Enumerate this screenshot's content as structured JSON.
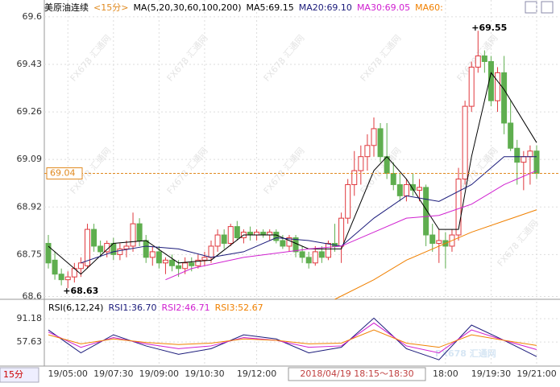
{
  "chart_data": {
    "type": "candlestick",
    "title": "美原油连续",
    "period": "<15分>",
    "indicator": "MA(5,20,30,60,100,200)",
    "ylim": [
      68.59,
      69.66
    ],
    "yticks": [
      69.6,
      69.43,
      69.26,
      69.09,
      68.92,
      68.75,
      68.6
    ],
    "up_color": "#e0393e",
    "down_color": "#5fae4f",
    "categories": [
      null,
      null,
      null,
      "19/05:00",
      null,
      null,
      null,
      null,
      null,
      null,
      "19/07:30",
      null,
      null,
      null,
      null,
      null,
      null,
      "19/09:00",
      null,
      null,
      null,
      null,
      null,
      null,
      "19/10:30",
      null,
      null,
      null,
      null,
      null,
      null,
      null,
      "19/12:00",
      null,
      null,
      null,
      null,
      null,
      null,
      null,
      null,
      null,
      null,
      null,
      null,
      null,
      null,
      null,
      null,
      null,
      null,
      null,
      null,
      null,
      null,
      null,
      null,
      null,
      null,
      null,
      null,
      "18:00",
      null,
      null,
      null,
      null,
      null,
      null,
      "19/19:30",
      null,
      null,
      null,
      null,
      null,
      null,
      "19/21:00"
    ],
    "ohlc": [
      [
        68.79,
        68.82,
        68.7,
        68.72
      ],
      [
        68.73,
        68.76,
        68.66,
        68.68
      ],
      [
        68.68,
        68.7,
        68.64,
        68.66
      ],
      [
        68.66,
        68.69,
        68.63,
        68.67
      ],
      [
        68.67,
        68.72,
        68.65,
        68.7
      ],
      [
        68.7,
        68.74,
        68.67,
        68.72
      ],
      [
        68.71,
        68.86,
        68.7,
        68.84
      ],
      [
        68.84,
        68.86,
        68.76,
        68.78
      ],
      [
        68.78,
        68.8,
        68.74,
        68.76
      ],
      [
        68.76,
        68.8,
        68.74,
        68.79
      ],
      [
        68.79,
        68.81,
        68.73,
        68.75
      ],
      [
        68.75,
        68.79,
        68.73,
        68.77
      ],
      [
        68.77,
        68.8,
        68.74,
        68.78
      ],
      [
        68.78,
        68.9,
        68.76,
        68.86
      ],
      [
        68.86,
        68.88,
        68.78,
        68.8
      ],
      [
        68.8,
        68.82,
        68.72,
        68.74
      ],
      [
        68.74,
        68.78,
        68.71,
        68.76
      ],
      [
        68.76,
        68.78,
        68.7,
        68.72
      ],
      [
        68.72,
        68.74,
        68.68,
        68.73
      ],
      [
        68.73,
        68.75,
        68.69,
        68.71
      ],
      [
        68.71,
        68.73,
        68.67,
        68.7
      ],
      [
        68.7,
        68.74,
        68.68,
        68.72
      ],
      [
        68.72,
        68.74,
        68.69,
        68.71
      ],
      [
        68.71,
        68.75,
        68.7,
        68.73
      ],
      [
        68.73,
        68.76,
        68.71,
        68.74
      ],
      [
        68.74,
        68.8,
        68.72,
        68.78
      ],
      [
        68.78,
        68.84,
        68.76,
        68.82
      ],
      [
        68.82,
        68.84,
        68.77,
        68.79
      ],
      [
        68.79,
        68.86,
        68.78,
        68.85
      ],
      [
        68.85,
        68.87,
        68.8,
        68.81
      ],
      [
        68.81,
        68.84,
        68.79,
        68.83
      ],
      [
        68.83,
        68.85,
        68.8,
        68.82
      ],
      [
        68.82,
        68.84,
        68.8,
        68.83
      ],
      [
        68.83,
        68.84,
        68.81,
        68.82
      ],
      [
        68.82,
        68.84,
        68.8,
        68.83
      ],
      [
        68.83,
        68.84,
        68.79,
        68.8
      ],
      [
        68.8,
        68.82,
        68.77,
        68.78
      ],
      [
        68.78,
        68.82,
        68.76,
        68.81
      ],
      [
        68.81,
        68.82,
        68.74,
        68.76
      ],
      [
        68.76,
        68.78,
        68.72,
        68.74
      ],
      [
        68.74,
        68.76,
        68.7,
        68.72
      ],
      [
        68.72,
        68.78,
        68.71,
        68.76
      ],
      [
        68.76,
        68.78,
        68.72,
        68.74
      ],
      [
        68.74,
        68.8,
        68.73,
        68.79
      ],
      [
        68.79,
        68.86,
        68.76,
        68.78
      ],
      [
        68.78,
        68.9,
        68.72,
        68.88
      ],
      [
        68.88,
        69.02,
        68.86,
        69.0
      ],
      [
        69.0,
        69.12,
        68.96,
        69.05
      ],
      [
        69.05,
        69.14,
        69.0,
        69.1
      ],
      [
        69.1,
        69.18,
        69.05,
        69.14
      ],
      [
        69.14,
        69.24,
        69.1,
        69.2
      ],
      [
        69.2,
        69.22,
        69.08,
        69.1
      ],
      [
        69.1,
        69.22,
        69.02,
        69.04
      ],
      [
        69.04,
        69.08,
        68.98,
        69.0
      ],
      [
        69.0,
        69.04,
        68.94,
        68.96
      ],
      [
        68.96,
        69.02,
        68.94,
        69.0
      ],
      [
        69.0,
        69.04,
        68.96,
        68.98
      ],
      [
        68.98,
        69.02,
        68.94,
        68.99
      ],
      [
        68.99,
        69.0,
        68.78,
        68.82
      ],
      [
        68.82,
        68.86,
        68.76,
        68.79
      ],
      [
        68.79,
        68.84,
        68.72,
        68.8
      ],
      [
        68.8,
        68.83,
        68.7,
        68.78
      ],
      [
        68.78,
        68.84,
        68.76,
        68.82
      ],
      [
        68.82,
        69.06,
        68.8,
        69.02
      ],
      [
        69.02,
        69.3,
        69.0,
        69.28
      ],
      [
        69.28,
        69.44,
        69.26,
        69.42
      ],
      [
        69.42,
        69.55,
        69.4,
        69.46
      ],
      [
        69.46,
        69.48,
        69.4,
        69.44
      ],
      [
        69.44,
        69.46,
        69.28,
        69.3
      ],
      [
        69.3,
        69.42,
        69.26,
        69.4
      ],
      [
        69.4,
        69.46,
        69.18,
        69.22
      ],
      [
        69.22,
        69.3,
        69.12,
        69.13
      ],
      [
        69.13,
        69.16,
        69.0,
        69.08
      ],
      [
        69.08,
        69.12,
        68.98,
        69.1
      ],
      [
        69.1,
        69.14,
        69.0,
        69.12
      ],
      [
        69.12,
        69.14,
        69.02,
        69.04
      ]
    ],
    "series": [
      {
        "name": "MA5:69.15",
        "color": "#000000",
        "x": [
          0,
          5,
          10,
          15,
          20,
          25,
          30,
          35,
          40,
          45,
          50,
          52,
          55,
          60,
          63,
          65,
          68,
          70,
          75
        ],
        "values": [
          68.78,
          68.68,
          68.79,
          68.8,
          68.72,
          68.73,
          68.82,
          68.82,
          68.77,
          68.77,
          69.05,
          69.1,
          69.02,
          68.84,
          68.84,
          69.1,
          69.4,
          69.34,
          69.15
        ]
      },
      {
        "name": "MA20:69.10",
        "color": "#1a1a7a",
        "x": [
          5,
          10,
          15,
          20,
          25,
          30,
          35,
          40,
          45,
          50,
          55,
          60,
          65,
          70,
          75
        ],
        "values": [
          68.72,
          68.76,
          68.78,
          68.77,
          68.74,
          68.76,
          68.81,
          68.8,
          68.78,
          68.88,
          68.96,
          68.94,
          69.0,
          69.1,
          69.1
        ]
      },
      {
        "name": "MA30:69.05",
        "color": "#d020d0",
        "x": [
          18,
          22,
          30,
          40,
          45,
          50,
          55,
          60,
          65,
          70,
          75
        ],
        "values": [
          68.66,
          68.7,
          68.74,
          68.77,
          68.78,
          68.83,
          68.88,
          68.89,
          68.93,
          69.0,
          69.05
        ]
      },
      {
        "name": "MA60:",
        "color": "#f08000",
        "x": [
          44,
          50,
          55,
          60,
          65,
          70,
          75
        ],
        "values": [
          68.59,
          68.66,
          68.73,
          68.78,
          68.83,
          68.87,
          68.91
        ]
      }
    ],
    "last_price": {
      "value": 69.04,
      "label": "69.04"
    },
    "high_mark": {
      "index": 66,
      "value": 69.55,
      "label": "+69.55"
    },
    "low_mark": {
      "index": 3,
      "value": 68.63,
      "label": "+68.63"
    },
    "cursor_label": "2018/04/19 18:15～18:30",
    "watermark": "FX678 汇通网",
    "period_button": "15分",
    "rsi": {
      "title": "RSI(6,12,24)",
      "ylim": [
        23,
        104
      ],
      "yticks": [
        91.18,
        57.63
      ],
      "series": [
        {
          "name": "RSI1:36.70",
          "color": "#1a1a7a",
          "x": [
            0,
            5,
            10,
            15,
            20,
            25,
            30,
            35,
            40,
            45,
            50,
            55,
            60,
            65,
            70,
            75
          ],
          "values": [
            75,
            42,
            68,
            52,
            40,
            48,
            68,
            62,
            42,
            50,
            92,
            48,
            32,
            82,
            60,
            36.7
          ]
        },
        {
          "name": "RSI2:46.71",
          "color": "#d020d0",
          "x": [
            0,
            5,
            10,
            15,
            20,
            25,
            30,
            35,
            40,
            45,
            50,
            55,
            60,
            65,
            70,
            75
          ],
          "values": [
            72,
            50,
            64,
            55,
            48,
            52,
            64,
            60,
            50,
            52,
            85,
            52,
            42,
            75,
            60,
            46.71
          ]
        },
        {
          "name": "RSI3:52.67",
          "color": "#f08000",
          "x": [
            0,
            5,
            10,
            15,
            20,
            25,
            30,
            35,
            40,
            45,
            50,
            55,
            60,
            65,
            70,
            75
          ],
          "values": [
            68,
            55,
            62,
            57,
            54,
            56,
            62,
            60,
            55,
            56,
            75,
            56,
            50,
            68,
            60,
            52.67
          ]
        }
      ]
    }
  }
}
